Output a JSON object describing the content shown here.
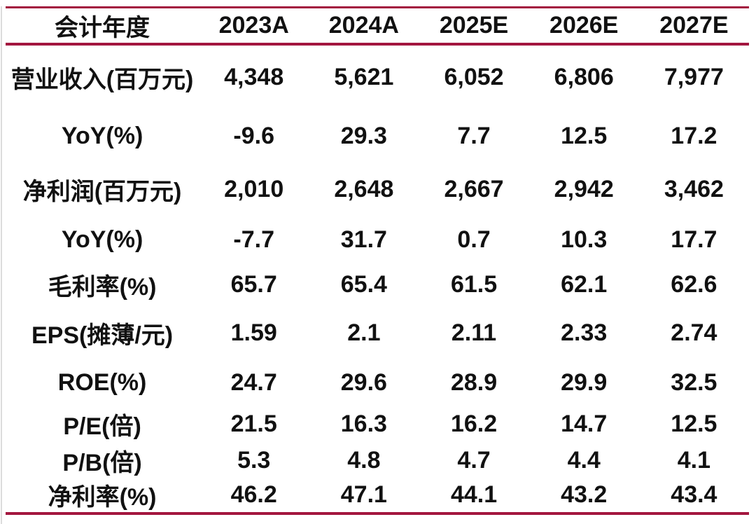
{
  "chart_data": {
    "type": "table",
    "columns": [
      "会计年度",
      "2023A",
      "2024A",
      "2025E",
      "2026E",
      "2027E"
    ],
    "rows": [
      [
        "营业收入(百万元)",
        "4,348",
        "5,621",
        "6,052",
        "6,806",
        "7,977"
      ],
      [
        "YoY(%)",
        "-9.6",
        "29.3",
        "7.7",
        "12.5",
        "17.2"
      ],
      [
        "净利润(百万元)",
        "2,010",
        "2,648",
        "2,667",
        "2,942",
        "3,462"
      ],
      [
        "YoY(%)",
        "-7.7",
        "31.7",
        "0.7",
        "10.3",
        "17.7"
      ],
      [
        "毛利率(%)",
        "65.7",
        "65.4",
        "61.5",
        "62.1",
        "62.6"
      ],
      [
        "EPS(摊薄/元)",
        "1.59",
        "2.1",
        "2.11",
        "2.33",
        "2.74"
      ],
      [
        "ROE(%)",
        "24.7",
        "29.6",
        "28.9",
        "29.9",
        "32.5"
      ],
      [
        "P/E(倍)",
        "21.5",
        "16.3",
        "16.2",
        "14.7",
        "12.5"
      ],
      [
        "P/B(倍)",
        "5.3",
        "4.8",
        "4.7",
        "4.4",
        "4.1"
      ],
      [
        "净利率(%)",
        "46.2",
        "47.1",
        "44.1",
        "43.2",
        "43.4"
      ]
    ],
    "layout": {
      "grid": "off",
      "header_position": "top",
      "alignment": "center"
    }
  },
  "colors": {
    "accent_rule": "#a3163f",
    "text": "#111111",
    "left_edge_line": "#dcdcdc",
    "background": "#ffffff"
  }
}
